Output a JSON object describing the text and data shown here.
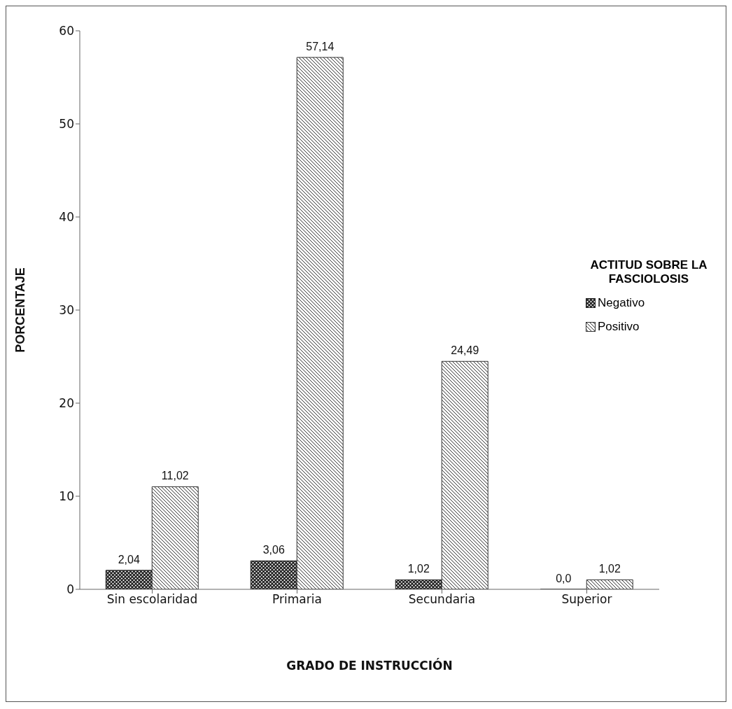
{
  "chart_data": {
    "type": "bar",
    "xlabel": "GRADO DE INSTRUCCIÓN",
    "ylabel": "PORCENTAJE",
    "legend_title": "ACTITUD SOBRE LA FASCIOLOSIS",
    "categories": [
      "Sin escolaridad",
      "Primaria",
      "Secundaria",
      "Superior"
    ],
    "series": [
      {
        "name": "Negativo",
        "color": "#222222",
        "values": [
          2.04,
          3.06,
          1.02,
          0
        ],
        "value_labels": [
          "2,04",
          "3,06",
          "1,02",
          "0,0"
        ]
      },
      {
        "name": "Positivo",
        "color": "#333333",
        "values": [
          11.02,
          57.14,
          24.49,
          1.02
        ],
        "value_labels": [
          "11,02",
          "57,14",
          "24,49",
          "1,02"
        ]
      }
    ],
    "ylim": [
      0,
      60
    ],
    "yticks": [
      0,
      10,
      20,
      30,
      40,
      50,
      60
    ],
    "grid": false,
    "legend": "right"
  }
}
